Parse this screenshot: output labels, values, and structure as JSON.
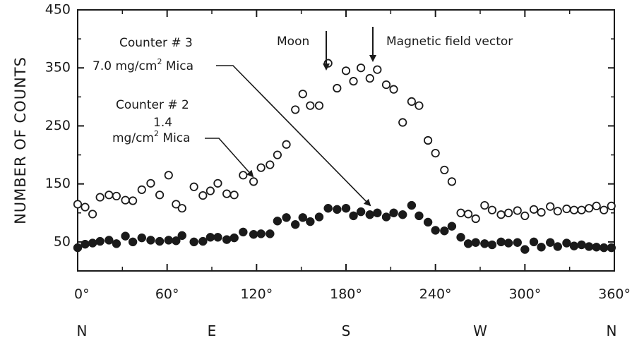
{
  "chart_data": {
    "type": "scatter",
    "title": "",
    "xlabel": "",
    "ylabel": "NUMBER OF COUNTS",
    "xlim": [
      0,
      360
    ],
    "ylim": [
      0,
      450
    ],
    "x_ticks": [
      0,
      60,
      120,
      180,
      240,
      300,
      360
    ],
    "x_tick_labels": [
      "0°",
      "60°",
      "120°",
      "180°",
      "240°",
      "300°",
      "360°"
    ],
    "y_ticks": [
      50,
      150,
      250,
      350,
      450
    ],
    "y_tick_labels": [
      "50",
      "150",
      "250",
      "350",
      "450"
    ],
    "compass": [
      {
        "label": "N",
        "x": 0
      },
      {
        "label": "E",
        "x": 90
      },
      {
        "label": "S",
        "x": 180
      },
      {
        "label": "W",
        "x": 270
      },
      {
        "label": "N",
        "x": 360
      }
    ],
    "grid": false,
    "legend": "none",
    "series": [
      {
        "name": "Counter # 3 7.0 mg/cm2 Mica",
        "marker": "open-circle",
        "points": [
          [
            0,
            115
          ],
          [
            5,
            110
          ],
          [
            10,
            98
          ],
          [
            15,
            127
          ],
          [
            21,
            131
          ],
          [
            26,
            129
          ],
          [
            32,
            122
          ],
          [
            37,
            121
          ],
          [
            43,
            140
          ],
          [
            49,
            151
          ],
          [
            55,
            131
          ],
          [
            61,
            165
          ],
          [
            66,
            115
          ],
          [
            70,
            108
          ],
          [
            78,
            145
          ],
          [
            84,
            130
          ],
          [
            89,
            138
          ],
          [
            94,
            151
          ],
          [
            100,
            133
          ],
          [
            105,
            131
          ],
          [
            111,
            165
          ],
          [
            118,
            154
          ],
          [
            123,
            178
          ],
          [
            129,
            183
          ],
          [
            134,
            200
          ],
          [
            140,
            218
          ],
          [
            146,
            278
          ],
          [
            151,
            305
          ],
          [
            156,
            285
          ],
          [
            162,
            285
          ],
          [
            168,
            358
          ],
          [
            174,
            315
          ],
          [
            180,
            345
          ],
          [
            185,
            327
          ],
          [
            190,
            350
          ],
          [
            196,
            332
          ],
          [
            201,
            347
          ],
          [
            207,
            321
          ],
          [
            212,
            313
          ],
          [
            218,
            256
          ],
          [
            224,
            292
          ],
          [
            229,
            285
          ],
          [
            235,
            225
          ],
          [
            240,
            203
          ],
          [
            246,
            174
          ],
          [
            251,
            154
          ],
          [
            257,
            100
          ],
          [
            262,
            98
          ],
          [
            267,
            90
          ],
          [
            273,
            113
          ],
          [
            278,
            105
          ],
          [
            284,
            97
          ],
          [
            289,
            100
          ],
          [
            295,
            104
          ],
          [
            300,
            95
          ],
          [
            306,
            106
          ],
          [
            311,
            101
          ],
          [
            317,
            111
          ],
          [
            322,
            103
          ],
          [
            328,
            107
          ],
          [
            333,
            105
          ],
          [
            338,
            105
          ],
          [
            343,
            108
          ],
          [
            348,
            112
          ],
          [
            353,
            105
          ],
          [
            358,
            112
          ]
        ]
      },
      {
        "name": "Counter # 2 1.4 mg/cm2 Mica",
        "marker": "filled-circle",
        "points": [
          [
            0,
            40
          ],
          [
            5,
            46
          ],
          [
            10,
            48
          ],
          [
            15,
            51
          ],
          [
            21,
            53
          ],
          [
            26,
            47
          ],
          [
            32,
            60
          ],
          [
            37,
            50
          ],
          [
            43,
            57
          ],
          [
            49,
            53
          ],
          [
            55,
            51
          ],
          [
            61,
            53
          ],
          [
            66,
            52
          ],
          [
            70,
            61
          ],
          [
            78,
            50
          ],
          [
            84,
            51
          ],
          [
            89,
            58
          ],
          [
            94,
            58
          ],
          [
            100,
            54
          ],
          [
            105,
            57
          ],
          [
            111,
            67
          ],
          [
            118,
            63
          ],
          [
            123,
            64
          ],
          [
            129,
            64
          ],
          [
            134,
            86
          ],
          [
            140,
            92
          ],
          [
            146,
            80
          ],
          [
            151,
            92
          ],
          [
            156,
            85
          ],
          [
            162,
            93
          ],
          [
            168,
            108
          ],
          [
            174,
            106
          ],
          [
            180,
            108
          ],
          [
            185,
            95
          ],
          [
            190,
            102
          ],
          [
            196,
            97
          ],
          [
            201,
            100
          ],
          [
            207,
            93
          ],
          [
            212,
            100
          ],
          [
            218,
            97
          ],
          [
            224,
            113
          ],
          [
            229,
            95
          ],
          [
            235,
            84
          ],
          [
            240,
            70
          ],
          [
            246,
            69
          ],
          [
            251,
            77
          ],
          [
            257,
            58
          ],
          [
            262,
            47
          ],
          [
            267,
            49
          ],
          [
            273,
            47
          ],
          [
            278,
            45
          ],
          [
            284,
            50
          ],
          [
            289,
            48
          ],
          [
            295,
            49
          ],
          [
            300,
            37
          ],
          [
            306,
            50
          ],
          [
            311,
            41
          ],
          [
            317,
            49
          ],
          [
            322,
            42
          ],
          [
            328,
            48
          ],
          [
            333,
            43
          ],
          [
            338,
            45
          ],
          [
            343,
            42
          ],
          [
            348,
            41
          ],
          [
            353,
            40
          ],
          [
            358,
            40
          ]
        ]
      }
    ],
    "annotations": {
      "moon": {
        "text": "Moon",
        "x": 165
      },
      "magnetic": {
        "text": "Magnetic field vector",
        "x": 192
      },
      "counter3": {
        "line1": "Counter # 3",
        "line2_pre": "7.0 mg/cm",
        "line2_sup": "2",
        "line2_post": " Mica"
      },
      "counter2": {
        "line1": "Counter # 2",
        "line2": "1.4",
        "line3_pre": "mg/cm",
        "line3_sup": "2",
        "line3_post": " Mica"
      }
    }
  }
}
